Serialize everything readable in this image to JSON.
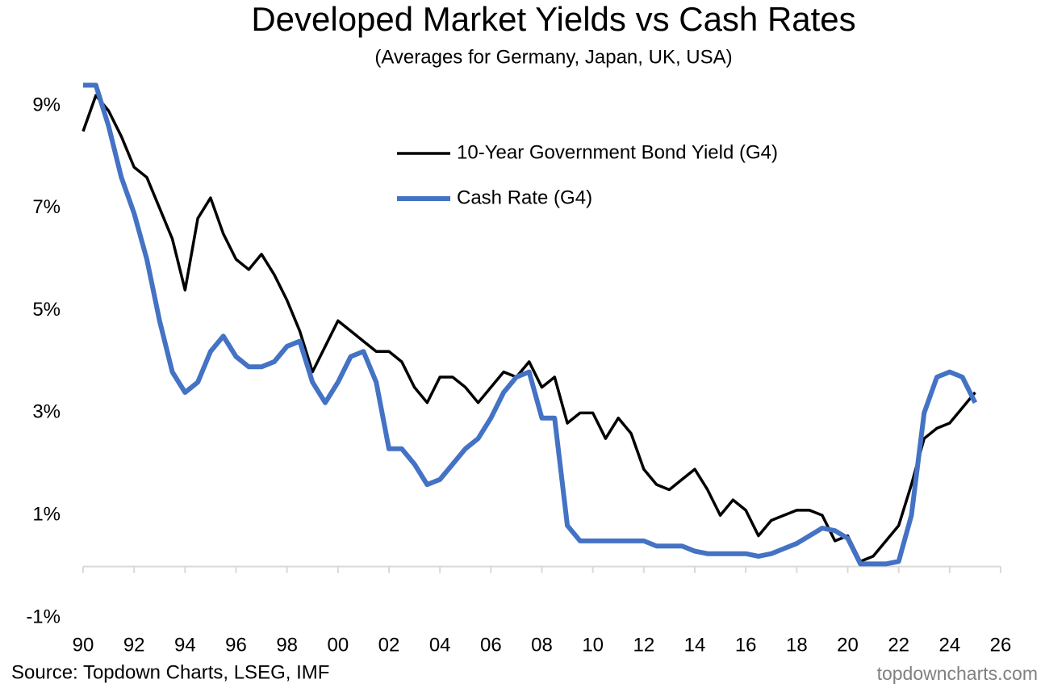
{
  "chart_data": {
    "type": "line",
    "title": "Developed Market Yields vs Cash Rates",
    "subtitle": "(Averages for Germany, Japan, UK, USA)",
    "source": "Source: Topdown Charts, LSEG, IMF",
    "watermark": "topdowncharts.com",
    "x": [
      1990,
      1990.5,
      1991,
      1991.5,
      1992,
      1992.5,
      1993,
      1993.5,
      1994,
      1994.5,
      1995,
      1995.5,
      1996,
      1996.5,
      1997,
      1997.5,
      1998,
      1998.5,
      1999,
      1999.5,
      2000,
      2000.5,
      2001,
      2001.5,
      2002,
      2002.5,
      2003,
      2003.5,
      2004,
      2004.5,
      2005,
      2005.5,
      2006,
      2006.5,
      2007,
      2007.5,
      2008,
      2008.5,
      2009,
      2009.5,
      2010,
      2010.5,
      2011,
      2011.5,
      2012,
      2012.5,
      2013,
      2013.5,
      2014,
      2014.5,
      2015,
      2015.5,
      2016,
      2016.5,
      2017,
      2017.5,
      2018,
      2018.5,
      2019,
      2019.5,
      2020,
      2020.5,
      2021,
      2021.5,
      2022,
      2022.5,
      2023,
      2023.5,
      2024,
      2024.5,
      2025
    ],
    "series": [
      {
        "name": "10-Year Government Bond Yield (G4)",
        "color": "#000000",
        "values": [
          8.5,
          9.2,
          8.9,
          8.4,
          7.8,
          7.6,
          7.0,
          6.4,
          5.4,
          6.8,
          7.2,
          6.5,
          6.0,
          5.8,
          6.1,
          5.7,
          5.2,
          4.6,
          3.8,
          4.3,
          4.8,
          4.6,
          4.4,
          4.2,
          4.2,
          4.0,
          3.5,
          3.2,
          3.7,
          3.7,
          3.5,
          3.2,
          3.5,
          3.8,
          3.7,
          4.0,
          3.5,
          3.7,
          2.8,
          3.0,
          3.0,
          2.5,
          2.9,
          2.6,
          1.9,
          1.6,
          1.5,
          1.7,
          1.9,
          1.5,
          1.0,
          1.3,
          1.1,
          0.6,
          0.9,
          1.0,
          1.1,
          1.1,
          1.0,
          0.5,
          0.6,
          0.1,
          0.2,
          0.5,
          0.8,
          1.6,
          2.5,
          2.7,
          2.8,
          3.1,
          3.4
        ]
      },
      {
        "name": "Cash Rate (G4)",
        "color": "#4472c4",
        "values": [
          9.4,
          9.4,
          8.6,
          7.6,
          6.9,
          6.0,
          4.8,
          3.8,
          3.4,
          3.6,
          4.2,
          4.5,
          4.1,
          3.9,
          3.9,
          4.0,
          4.3,
          4.4,
          3.6,
          3.2,
          3.6,
          4.1,
          4.2,
          3.6,
          2.3,
          2.3,
          2.0,
          1.6,
          1.7,
          2.0,
          2.3,
          2.5,
          2.9,
          3.4,
          3.7,
          3.8,
          2.9,
          2.9,
          0.8,
          0.5,
          0.5,
          0.5,
          0.5,
          0.5,
          0.5,
          0.4,
          0.4,
          0.4,
          0.3,
          0.25,
          0.25,
          0.25,
          0.25,
          0.2,
          0.25,
          0.35,
          0.45,
          0.6,
          0.75,
          0.7,
          0.55,
          0.05,
          0.05,
          0.05,
          0.1,
          1.0,
          3.0,
          3.7,
          3.8,
          3.7,
          3.2
        ]
      }
    ],
    "xlim": [
      1990,
      2026
    ],
    "xticks": [
      {
        "value": 1990,
        "label": "90"
      },
      {
        "value": 1992,
        "label": "92"
      },
      {
        "value": 1994,
        "label": "94"
      },
      {
        "value": 1996,
        "label": "96"
      },
      {
        "value": 1998,
        "label": "98"
      },
      {
        "value": 2000,
        "label": "00"
      },
      {
        "value": 2002,
        "label": "02"
      },
      {
        "value": 2004,
        "label": "04"
      },
      {
        "value": 2006,
        "label": "06"
      },
      {
        "value": 2008,
        "label": "08"
      },
      {
        "value": 2010,
        "label": "10"
      },
      {
        "value": 2012,
        "label": "12"
      },
      {
        "value": 2014,
        "label": "14"
      },
      {
        "value": 2016,
        "label": "16"
      },
      {
        "value": 2018,
        "label": "18"
      },
      {
        "value": 2020,
        "label": "20"
      },
      {
        "value": 2022,
        "label": "22"
      },
      {
        "value": 2024,
        "label": "24"
      },
      {
        "value": 2026,
        "label": "26"
      }
    ],
    "ylim": [
      -1,
      10
    ],
    "yticks": [
      {
        "value": -1,
        "label": "-1%"
      },
      {
        "value": 1,
        "label": "1%"
      },
      {
        "value": 3,
        "label": "3%"
      },
      {
        "value": 5,
        "label": "5%"
      },
      {
        "value": 7,
        "label": "7%"
      },
      {
        "value": 9,
        "label": "9%"
      }
    ],
    "grid": false,
    "legend": "top-right"
  }
}
